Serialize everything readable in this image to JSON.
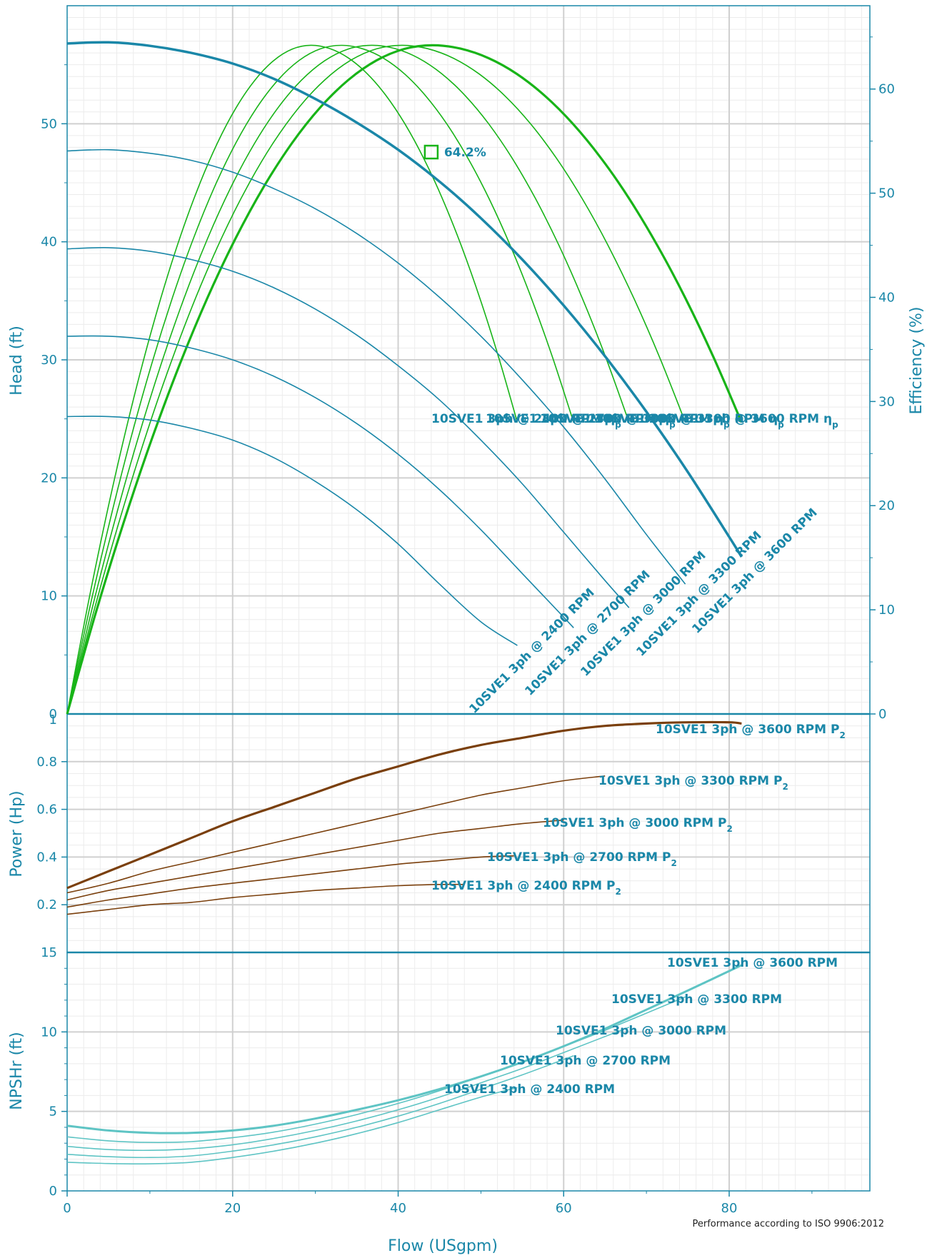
{
  "colors": {
    "axis": "#1a87a8",
    "head": "#1a87a8",
    "efficiency": "#18b418",
    "power": "#7a3f0c",
    "npsh": "#5ec4c4",
    "grid_major": "#d0d0d0",
    "grid_minor": "#ececec"
  },
  "footer": "Performance according to ISO 9906:2012",
  "chart_data": {
    "type": "line",
    "x_label": "Flow (USgpm)",
    "x_ticks": [
      "0",
      "20",
      "40",
      "60",
      "80"
    ],
    "xlim": [
      0,
      97
    ],
    "grid": true,
    "speeds": [
      {
        "label_head": "10SVE1 3ph @ 2400 RPM",
        "label_power": "10SVE1 3ph @ 2400 RPM",
        "label_npsh": "10SVE1 3ph @ 2400 RPM",
        "label_eff": "10SVE1 3ph @ 2400 RPM"
      },
      {
        "label_head": "10SVE1 3ph @ 2700 RPM",
        "label_power": "10SVE1 3ph @ 2700 RPM",
        "label_npsh": "10SVE1 3ph @ 2700 RPM",
        "label_eff": "10SVE1 3ph @ 2700 RPM"
      },
      {
        "label_head": "10SVE1 3ph @ 3000 RPM",
        "label_power": "10SVE1 3ph @ 3000 RPM",
        "label_npsh": "10SVE1 3ph @ 3000 RPM",
        "label_eff": "10SVE1 3ph @ 3000 RPM"
      },
      {
        "label_head": "10SVE1 3ph @ 3300 RPM",
        "label_power": "10SVE1 3ph @ 3300 RPM",
        "label_npsh": "10SVE1 3ph @ 3300 RPM",
        "label_eff": "10SVE1 3ph @ 3300 RPM"
      },
      {
        "label_head": "10SVE1 3ph @ 3600 RPM",
        "label_power": "10SVE1 3ph @ 3600 RPM",
        "label_npsh": "10SVE1 3ph @ 3600 RPM",
        "label_eff": "10SVE1 3ph @ 3600 RPM"
      }
    ],
    "power_suffix": "P",
    "power_sub": "2",
    "eff_suffix": "η",
    "eff_sub": "p",
    "panels": {
      "head": {
        "y_label": "Head (ft)",
        "y_ticks": [
          "10",
          "20",
          "30",
          "40",
          "50"
        ],
        "zero_label": "0",
        "ylim": [
          0,
          60
        ],
        "series": [
          {
            "name": "10SVE1 3ph @ 2400 RPM",
            "x": [
              0,
              5,
              10,
              15,
              20,
              25,
              30,
              35,
              40,
              45,
              50,
              54.4
            ],
            "y": [
              25.2,
              25.2,
              24.9,
              24.2,
              23.2,
              21.7,
              19.7,
              17.3,
              14.4,
              11.0,
              7.8,
              5.8
            ]
          },
          {
            "name": "10SVE1 3ph @ 2700 RPM",
            "x": [
              0,
              5,
              10,
              15,
              20,
              25,
              30,
              35,
              40,
              45,
              50,
              55,
              60,
              61.2
            ],
            "y": [
              32.0,
              32.0,
              31.7,
              31.0,
              30.0,
              28.6,
              26.8,
              24.6,
              22.0,
              19.0,
              15.6,
              11.9,
              8.2,
              7.3
            ]
          },
          {
            "name": "10SVE1 3ph @ 3000 RPM",
            "x": [
              0,
              5,
              10,
              15,
              20,
              25,
              30,
              35,
              40,
              45,
              50,
              55,
              60,
              65,
              67.9
            ],
            "y": [
              39.4,
              39.5,
              39.2,
              38.5,
              37.5,
              36.1,
              34.3,
              32.1,
              29.5,
              26.6,
              23.2,
              19.5,
              15.4,
              11.3,
              9.0
            ]
          },
          {
            "name": "10SVE1 3ph @ 3300 RPM",
            "x": [
              0,
              5,
              10,
              15,
              20,
              25,
              30,
              35,
              40,
              45,
              50,
              55,
              60,
              65,
              70,
              74.7
            ],
            "y": [
              47.7,
              47.8,
              47.5,
              46.9,
              45.9,
              44.5,
              42.8,
              40.7,
              38.2,
              35.3,
              32.0,
              28.3,
              24.3,
              19.9,
              15.2,
              11.0
            ]
          },
          {
            "name": "10SVE1 3ph @ 3600 RPM",
            "x": [
              0,
              5,
              10,
              15,
              20,
              25,
              30,
              35,
              40,
              45,
              50,
              55,
              60,
              65,
              70,
              75,
              80,
              81.5
            ],
            "y": [
              56.8,
              56.9,
              56.6,
              56.0,
              55.1,
              53.8,
              52.1,
              50.1,
              47.8,
              45.1,
              42.0,
              38.5,
              34.6,
              30.3,
              25.6,
              20.5,
              15.0,
              13.3
            ]
          }
        ]
      },
      "efficiency": {
        "y_label": "Efficiency (%)",
        "y_ticks": [
          "0",
          "10",
          "20",
          "30",
          "40",
          "50",
          "60"
        ],
        "ylim": [
          0,
          68
        ],
        "bep_label": "64.2%",
        "bep_x": 44,
        "bep_head": 47.6,
        "series": [
          {
            "name": "10SVE1 3ph @ 2400 RPM",
            "peak_x": 29.4,
            "end_x": 54.4
          },
          {
            "name": "10SVE1 3ph @ 2700 RPM",
            "peak_x": 33.0,
            "end_x": 61.2
          },
          {
            "name": "10SVE1 3ph @ 3000 RPM",
            "peak_x": 36.7,
            "end_x": 67.9
          },
          {
            "name": "10SVE1 3ph @ 3300 RPM",
            "peak_x": 40.3,
            "end_x": 74.7
          },
          {
            "name": "10SVE1 3ph @ 3600 RPM",
            "peak_x": 44.0,
            "end_x": 81.5
          }
        ],
        "peak_value": 64.2,
        "end_value": 28.0
      },
      "power": {
        "y_label": "Power (Hp)",
        "y_ticks": [
          "0.2",
          "0.4",
          "0.6",
          "0.8"
        ],
        "top_label": "1",
        "ylim": [
          0,
          1
        ],
        "series": [
          {
            "name": "10SVE1 3ph @ 2400 RPM",
            "x": [
              0,
              5,
              10,
              15,
              20,
              25,
              30,
              35,
              40,
              45,
              48
            ],
            "y": [
              0.16,
              0.18,
              0.2,
              0.21,
              0.23,
              0.245,
              0.26,
              0.27,
              0.28,
              0.285,
              0.285
            ]
          },
          {
            "name": "10SVE1 3ph @ 2700 RPM",
            "x": [
              0,
              5,
              10,
              15,
              20,
              25,
              30,
              35,
              40,
              45,
              50,
              54
            ],
            "y": [
              0.19,
              0.22,
              0.245,
              0.27,
              0.29,
              0.31,
              0.33,
              0.35,
              0.37,
              0.385,
              0.4,
              0.405
            ]
          },
          {
            "name": "10SVE1 3ph @ 3000 RPM",
            "x": [
              0,
              5,
              10,
              15,
              20,
              25,
              30,
              35,
              40,
              45,
              50,
              55,
              60
            ],
            "y": [
              0.22,
              0.26,
              0.29,
              0.32,
              0.35,
              0.38,
              0.41,
              0.44,
              0.47,
              0.5,
              0.52,
              0.54,
              0.555
            ]
          },
          {
            "name": "10SVE1 3ph @ 3300 RPM",
            "x": [
              0,
              5,
              10,
              15,
              20,
              25,
              30,
              35,
              40,
              45,
              50,
              55,
              60,
              65
            ],
            "y": [
              0.25,
              0.29,
              0.34,
              0.38,
              0.42,
              0.46,
              0.5,
              0.54,
              0.58,
              0.62,
              0.66,
              0.69,
              0.72,
              0.74
            ]
          },
          {
            "name": "10SVE1 3ph @ 3600 RPM",
            "x": [
              0,
              5,
              10,
              15,
              20,
              25,
              30,
              35,
              40,
              45,
              50,
              55,
              60,
              65,
              70,
              75,
              80,
              81.5
            ],
            "y": [
              0.27,
              0.34,
              0.41,
              0.48,
              0.55,
              0.61,
              0.67,
              0.73,
              0.78,
              0.83,
              0.87,
              0.9,
              0.93,
              0.95,
              0.96,
              0.965,
              0.965,
              0.96
            ]
          }
        ]
      },
      "npsh": {
        "y_label": "NPSHr (ft)",
        "y_ticks": [
          "0",
          "5",
          "10"
        ],
        "top_label": "15",
        "ylim": [
          0,
          15
        ],
        "series": [
          {
            "name": "10SVE1 3ph @ 2400 RPM",
            "x": [
              0,
              5,
              10,
              15,
              20,
              25,
              30,
              35,
              40,
              45,
              50,
              54.4
            ],
            "y": [
              1.8,
              1.72,
              1.7,
              1.8,
              2.1,
              2.5,
              3.0,
              3.6,
              4.3,
              5.1,
              5.9,
              6.5
            ]
          },
          {
            "name": "10SVE1 3ph @ 2700 RPM",
            "x": [
              0,
              5,
              10,
              15,
              20,
              25,
              30,
              35,
              40,
              45,
              50,
              55,
              61.2
            ],
            "y": [
              2.3,
              2.15,
              2.1,
              2.2,
              2.5,
              2.9,
              3.4,
              4.0,
              4.7,
              5.5,
              6.4,
              7.3,
              8.5
            ]
          },
          {
            "name": "10SVE1 3ph @ 3000 RPM",
            "x": [
              0,
              5,
              10,
              15,
              20,
              25,
              30,
              35,
              40,
              45,
              50,
              55,
              60,
              67.9
            ],
            "y": [
              2.8,
              2.6,
              2.55,
              2.65,
              2.9,
              3.3,
              3.8,
              4.4,
              5.1,
              5.9,
              6.8,
              7.7,
              8.7,
              10.3
            ]
          },
          {
            "name": "10SVE1 3ph @ 3300 RPM",
            "x": [
              0,
              5,
              10,
              15,
              20,
              25,
              30,
              35,
              40,
              45,
              50,
              55,
              60,
              65,
              74.7
            ],
            "y": [
              3.4,
              3.15,
              3.05,
              3.1,
              3.35,
              3.7,
              4.2,
              4.8,
              5.5,
              6.3,
              7.2,
              8.1,
              9.1,
              10.1,
              12.2
            ]
          },
          {
            "name": "10SVE1 3ph @ 3600 RPM",
            "x": [
              0,
              5,
              10,
              15,
              20,
              25,
              30,
              35,
              40,
              45,
              50,
              55,
              60,
              65,
              70,
              75,
              81.5
            ],
            "y": [
              4.1,
              3.8,
              3.65,
              3.65,
              3.8,
              4.1,
              4.55,
              5.1,
              5.7,
              6.4,
              7.2,
              8.1,
              9.1,
              10.2,
              11.4,
              12.6,
              14.2
            ]
          }
        ]
      }
    }
  }
}
